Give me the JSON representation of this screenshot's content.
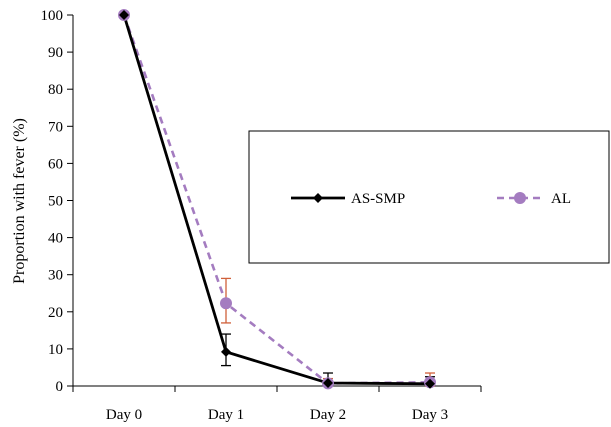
{
  "chart_data": {
    "type": "line",
    "categories": [
      "Day 0",
      "Day 1",
      "Day 2",
      "Day 3"
    ],
    "ylabel": "Proportion with fever (%)",
    "xlabel": "",
    "ylim": [
      0,
      100
    ],
    "yticks": [
      0,
      10,
      20,
      30,
      40,
      50,
      60,
      70,
      80,
      90,
      100
    ],
    "grid": false,
    "legend_position": "right",
    "series": [
      {
        "name": "AS-SMP",
        "values": [
          100,
          9.2,
          0.8,
          0.6
        ],
        "error_low": [
          null,
          5.5,
          0,
          0
        ],
        "error_high": [
          null,
          14,
          3.5,
          2.5
        ],
        "color": "#000000",
        "error_color": "#000000",
        "line_style": "solid",
        "marker": "diamond"
      },
      {
        "name": "AL",
        "values": [
          100,
          22.3,
          0.7,
          1.0
        ],
        "error_low": [
          null,
          17,
          0,
          0
        ],
        "error_high": [
          null,
          29,
          2,
          3.5
        ],
        "color": "#a47cc0",
        "error_color": "#d0603a",
        "line_style": "dashed",
        "marker": "circle"
      }
    ]
  }
}
